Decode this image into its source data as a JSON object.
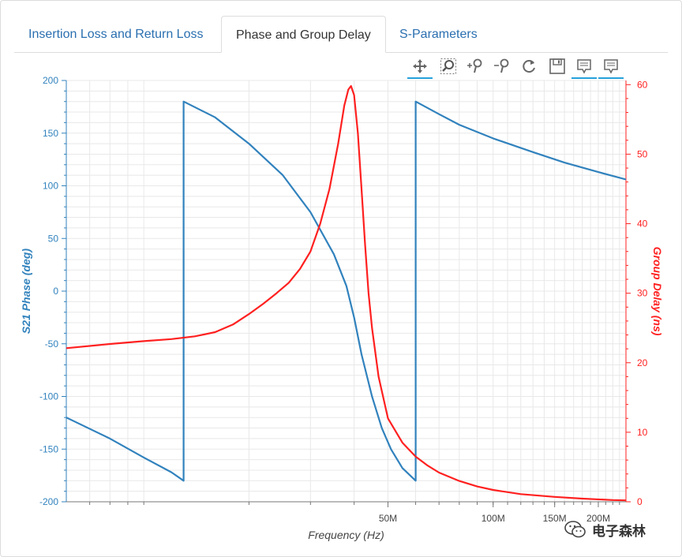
{
  "tabs": [
    {
      "label": "Insertion Loss and Return Loss",
      "active": false
    },
    {
      "label": "Phase and Group Delay",
      "active": true
    },
    {
      "label": "S-Parameters",
      "active": false
    }
  ],
  "toolbar": {
    "tools": [
      "pan-icon",
      "box-zoom-icon",
      "zoom-in-icon",
      "zoom-out-icon",
      "reset-icon",
      "save-icon",
      "hover-icon",
      "hover-icon-2"
    ]
  },
  "watermark": {
    "text": "电子森林"
  },
  "colors": {
    "phase": "#3182bd",
    "delay": "#ff2020",
    "grid": "#e8e8e8",
    "tab_link": "#2a6fb0"
  },
  "chart_data": {
    "type": "line",
    "xlabel": "Frequency (Hz)",
    "x_scale": "log",
    "x_range": [
      6000000,
      240000000
    ],
    "x_ticks": [
      {
        "value": 50000000,
        "label": "50M"
      },
      {
        "value": 100000000,
        "label": "100M"
      },
      {
        "value": 150000000,
        "label": "150M"
      },
      {
        "value": 200000000,
        "label": "200M"
      }
    ],
    "y_left": {
      "label": "S21 Phase (deg)",
      "range": [
        -200,
        200
      ],
      "ticks": [
        200,
        150,
        100,
        50,
        0,
        -50,
        -100,
        -150,
        -200
      ]
    },
    "y_right": {
      "label": "Group Delay (ns)",
      "range": [
        0,
        60.6
      ],
      "ticks": [
        60,
        50,
        40,
        30,
        20,
        10,
        0
      ]
    },
    "grid": true,
    "series": [
      {
        "axis": "left",
        "points": [
          [
            6000000,
            -120
          ],
          [
            8000000,
            -140
          ],
          [
            10000000,
            -158
          ],
          [
            12000000,
            -172
          ],
          [
            13000000,
            -180
          ],
          [
            13000000,
            180
          ],
          [
            16000000,
            165
          ],
          [
            20000000,
            140
          ],
          [
            25000000,
            110
          ],
          [
            30000000,
            75
          ],
          [
            35000000,
            35
          ],
          [
            38000000,
            5
          ],
          [
            40000000,
            -25
          ],
          [
            42000000,
            -60
          ],
          [
            45000000,
            -100
          ],
          [
            48000000,
            -130
          ],
          [
            51000000,
            -150
          ],
          [
            55000000,
            -168
          ],
          [
            60000000,
            -180
          ],
          [
            60000000,
            180
          ],
          [
            70000000,
            168
          ],
          [
            80000000,
            158
          ],
          [
            100000000,
            145
          ],
          [
            130000000,
            132
          ],
          [
            160000000,
            122
          ],
          [
            200000000,
            113
          ],
          [
            240000000,
            106
          ]
        ]
      },
      {
        "axis": "right",
        "points": [
          [
            6000000,
            22.1
          ],
          [
            8000000,
            22.7
          ],
          [
            10000000,
            23.1
          ],
          [
            12000000,
            23.4
          ],
          [
            14000000,
            23.8
          ],
          [
            16000000,
            24.4
          ],
          [
            18000000,
            25.5
          ],
          [
            20000000,
            27.0
          ],
          [
            22000000,
            28.5
          ],
          [
            24000000,
            30.0
          ],
          [
            26000000,
            31.5
          ],
          [
            28000000,
            33.5
          ],
          [
            30000000,
            36.0
          ],
          [
            32000000,
            40.0
          ],
          [
            34000000,
            45.0
          ],
          [
            36000000,
            51.5
          ],
          [
            37500000,
            57.0
          ],
          [
            38500000,
            59.3
          ],
          [
            39200000,
            59.8
          ],
          [
            40000000,
            58.5
          ],
          [
            41000000,
            53.0
          ],
          [
            42000000,
            45.0
          ],
          [
            43000000,
            37.0
          ],
          [
            44000000,
            30.0
          ],
          [
            45000000,
            25.0
          ],
          [
            47000000,
            18.0
          ],
          [
            50000000,
            12.0
          ],
          [
            55000000,
            8.5
          ],
          [
            60000000,
            6.5
          ],
          [
            65000000,
            5.2
          ],
          [
            70000000,
            4.2
          ],
          [
            80000000,
            3.0
          ],
          [
            90000000,
            2.2
          ],
          [
            100000000,
            1.7
          ],
          [
            120000000,
            1.1
          ],
          [
            150000000,
            0.7
          ],
          [
            180000000,
            0.45
          ],
          [
            220000000,
            0.25
          ],
          [
            240000000,
            0.2
          ]
        ]
      }
    ]
  }
}
